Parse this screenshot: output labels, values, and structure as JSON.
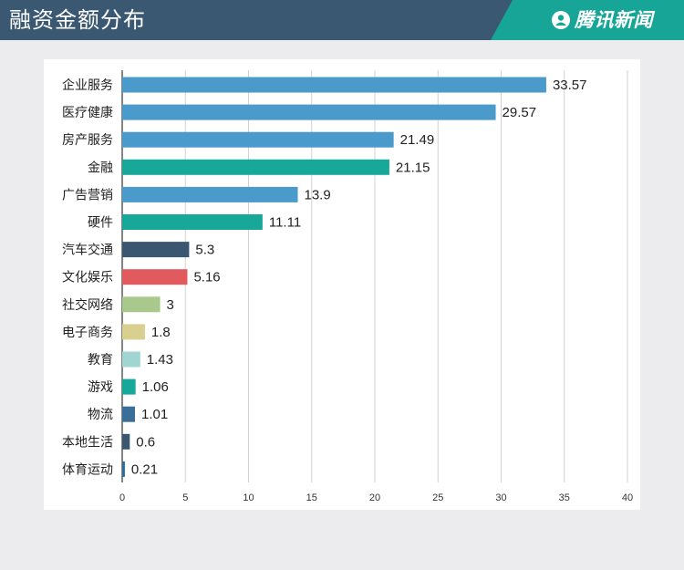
{
  "header": {
    "title": "融资金额分布",
    "brand": "腾讯新闻"
  },
  "chart_data": {
    "type": "bar",
    "orientation": "horizontal",
    "title": "融资金额分布",
    "xlabel": "",
    "ylabel": "",
    "xlim": [
      0,
      40
    ],
    "xticks": [
      0,
      5,
      10,
      15,
      20,
      25,
      30,
      35,
      40
    ],
    "grid": true,
    "categories": [
      "企业服务",
      "医疗健康",
      "房产服务",
      "金融",
      "广告营销",
      "硬件",
      "汽车交通",
      "文化娱乐",
      "社交网络",
      "电子商务",
      "教育",
      "游戏",
      "物流",
      "本地生活",
      "体育运动"
    ],
    "values": [
      33.57,
      29.57,
      21.49,
      21.15,
      13.9,
      11.11,
      5.3,
      5.16,
      3,
      1.8,
      1.43,
      1.06,
      1.01,
      0.6,
      0.21
    ],
    "value_labels": [
      "33.57",
      "29.57",
      "21.49",
      "21.15",
      "13.9",
      "11.11",
      "5.3",
      "5.16",
      "3",
      "1.8",
      "1.43",
      "1.06",
      "1.01",
      "0.6",
      "0.21"
    ],
    "colors": [
      "#4a9acb",
      "#4a9acb",
      "#4a9acb",
      "#18a89a",
      "#4a9acb",
      "#18a89a",
      "#3b5670",
      "#e05a5e",
      "#a9c98c",
      "#d9cf8f",
      "#a1d5d2",
      "#18a89a",
      "#3a6f9a",
      "#3b5670",
      "#2b6ca0"
    ]
  }
}
